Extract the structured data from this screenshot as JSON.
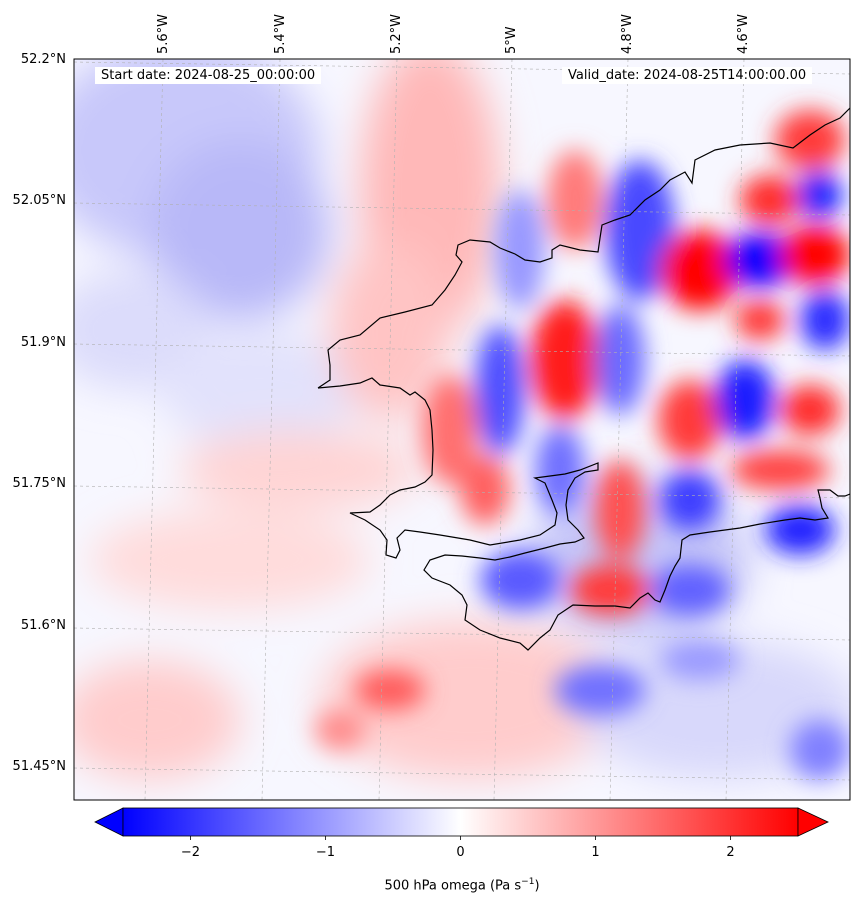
{
  "map": {
    "start_label": "Start date: 2024-08-25_00:00:00",
    "valid_label": "Valid_date: 2024-08-25T14:00:00.00",
    "lat_ticks": [
      "52.2°N",
      "52.05°N",
      "51.9°N",
      "51.75°N",
      "51.6°N",
      "51.45°N"
    ],
    "lon_ticks": [
      "5.6°W",
      "5.4°W",
      "5.2°W",
      "5°W",
      "4.8°W",
      "4.6°W"
    ],
    "colorbar": {
      "label": "500 hPa omega (Pa s",
      "label_sup": "−1",
      "label_close": ")",
      "ticks": [
        "−2",
        "−1",
        "0",
        "1",
        "2"
      ],
      "tick_values": [
        -2,
        -1,
        0,
        1,
        2
      ],
      "vmin": -2.5,
      "vmax": 2.5,
      "colors": {
        "negative": "#0000ff",
        "zero": "#ffffff",
        "positive": "#ff0000"
      }
    },
    "colors": {
      "coastline": "#000000",
      "grid": "#b0b0b0"
    }
  }
}
